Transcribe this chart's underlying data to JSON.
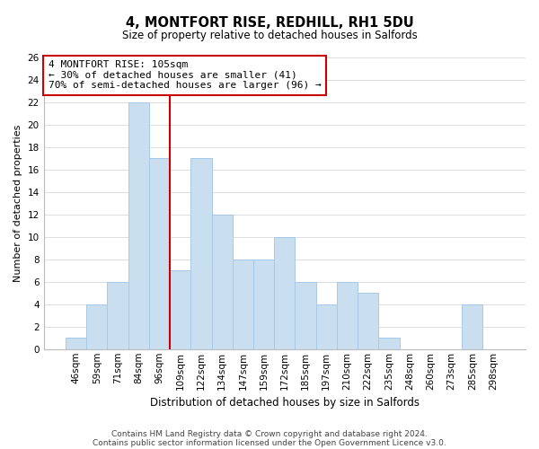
{
  "title": "4, MONTFORT RISE, REDHILL, RH1 5DU",
  "subtitle": "Size of property relative to detached houses in Salfords",
  "xlabel": "Distribution of detached houses by size in Salfords",
  "ylabel": "Number of detached properties",
  "bar_labels": [
    "46sqm",
    "59sqm",
    "71sqm",
    "84sqm",
    "96sqm",
    "109sqm",
    "122sqm",
    "134sqm",
    "147sqm",
    "159sqm",
    "172sqm",
    "185sqm",
    "197sqm",
    "210sqm",
    "222sqm",
    "235sqm",
    "248sqm",
    "260sqm",
    "273sqm",
    "285sqm",
    "298sqm"
  ],
  "bar_values": [
    1,
    4,
    6,
    22,
    17,
    7,
    17,
    12,
    8,
    8,
    10,
    6,
    4,
    6,
    5,
    1,
    0,
    0,
    0,
    4,
    0
  ],
  "bar_color": "#c9dff0",
  "bar_edge_color": "#a8c8e8",
  "vline_x_idx": 4.5,
  "vline_color": "#cc0000",
  "ylim": [
    0,
    26
  ],
  "yticks": [
    0,
    2,
    4,
    6,
    8,
    10,
    12,
    14,
    16,
    18,
    20,
    22,
    24,
    26
  ],
  "annotation_title": "4 MONTFORT RISE: 105sqm",
  "annotation_line1": "← 30% of detached houses are smaller (41)",
  "annotation_line2": "70% of semi-detached houses are larger (96) →",
  "annotation_box_color": "#ffffff",
  "annotation_box_edge": "#cc0000",
  "footnote1": "Contains HM Land Registry data © Crown copyright and database right 2024.",
  "footnote2": "Contains public sector information licensed under the Open Government Licence v3.0.",
  "background_color": "#ffffff",
  "grid_color": "#dddddd",
  "title_fontsize": 10.5,
  "subtitle_fontsize": 8.5,
  "ylabel_fontsize": 8,
  "xlabel_fontsize": 8.5,
  "tick_fontsize": 7.5,
  "annotation_fontsize": 8,
  "footnote_fontsize": 6.5
}
